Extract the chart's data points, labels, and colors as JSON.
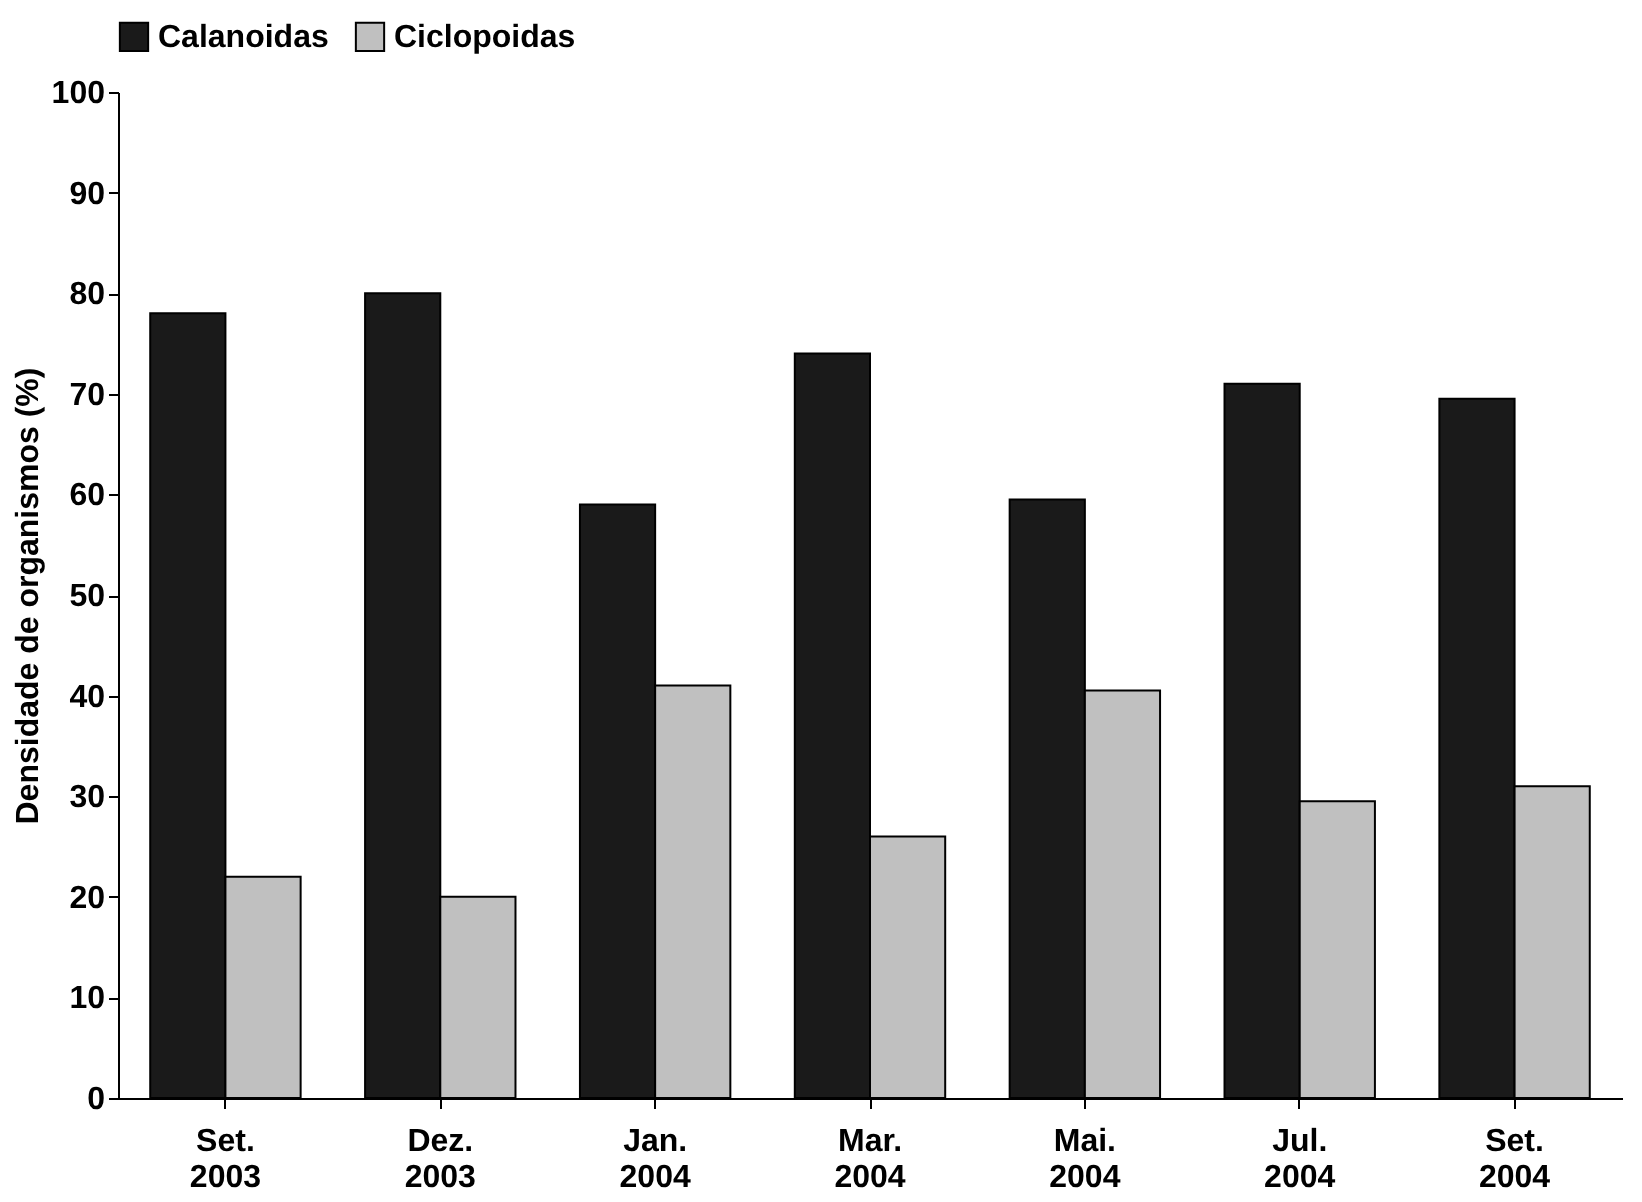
{
  "chart_data": {
    "type": "bar",
    "ylabel": "Densidade de organismos (%)",
    "categories": [
      "Set. 2003",
      "Dez. 2003",
      "Jan. 2004",
      "Mar. 2004",
      "Mai. 2004",
      "Jul. 2004",
      "Set. 2004"
    ],
    "series": [
      {
        "name": "Calanoidas",
        "color": "#1a1a1a",
        "values": [
          78,
          80,
          59,
          74,
          59.5,
          71,
          69.5
        ]
      },
      {
        "name": "Ciclopoidas",
        "color": "#c0c0c0",
        "values": [
          22,
          20,
          41,
          26,
          40.5,
          29.5,
          31
        ]
      }
    ],
    "ylim": [
      0,
      100
    ],
    "yticks": [
      0,
      10,
      20,
      30,
      40,
      50,
      60,
      70,
      80,
      90,
      100
    ],
    "grid": false,
    "legend": "top"
  }
}
